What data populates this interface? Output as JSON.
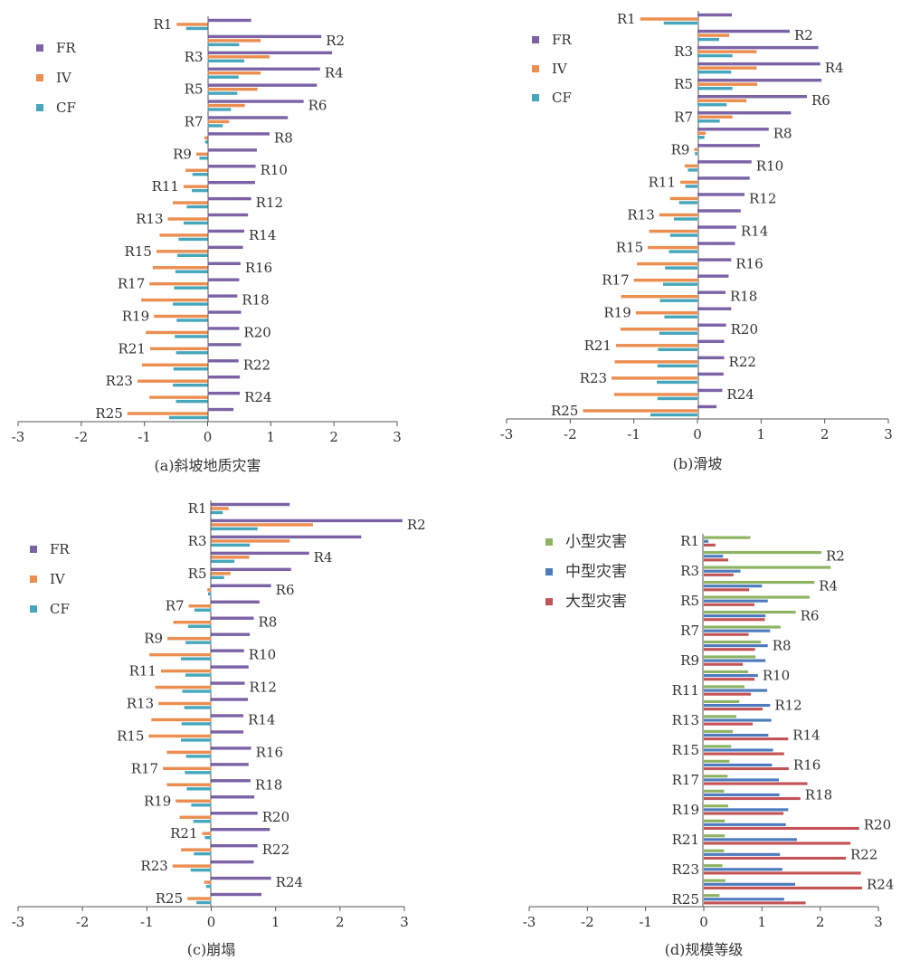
{
  "figure": {
    "colors": {
      "FR": "#7b63a6",
      "IV": "#ec8e4f",
      "CF": "#46a7bc",
      "小型灾害": "#8db363",
      "中型灾害": "#4e7bbe",
      "大型灾害": "#c35356"
    }
  },
  "chart_data": [
    {
      "type": "bar",
      "orientation": "horizontal",
      "title": "(a)斜坡地质灾害",
      "xlim": [
        -3,
        3
      ],
      "xticks": [
        "-3",
        "-2",
        "-1",
        "0",
        "1",
        "2",
        "3"
      ],
      "legend_position": "top-left",
      "categories": [
        "R1",
        "R2",
        "R3",
        "R4",
        "R5",
        "R6",
        "R7",
        "R8",
        "R9",
        "R10",
        "R11",
        "R12",
        "R13",
        "R14",
        "R15",
        "R16",
        "R17",
        "R18",
        "R19",
        "R20",
        "R21",
        "R22",
        "R23",
        "R24",
        "R25"
      ],
      "series": [
        {
          "name": "FR",
          "values": [
            0.69,
            1.8,
            1.97,
            1.78,
            1.73,
            1.52,
            1.27,
            0.98,
            0.78,
            0.76,
            0.75,
            0.69,
            0.64,
            0.58,
            0.56,
            0.52,
            0.5,
            0.47,
            0.53,
            0.5,
            0.53,
            0.49,
            0.51,
            0.51,
            0.41
          ]
        },
        {
          "name": "IV",
          "values": [
            -0.49,
            0.84,
            0.98,
            0.84,
            0.79,
            0.59,
            0.34,
            -0.05,
            -0.18,
            -0.35,
            -0.38,
            -0.55,
            -0.63,
            -0.76,
            -0.81,
            -0.87,
            -0.92,
            -1.05,
            -0.85,
            -0.98,
            -0.91,
            -1.04,
            -1.11,
            -0.92,
            -1.27
          ]
        },
        {
          "name": "CF",
          "values": [
            -0.34,
            0.5,
            0.58,
            0.49,
            0.47,
            0.37,
            0.24,
            -0.04,
            -0.13,
            -0.24,
            -0.25,
            -0.33,
            -0.38,
            -0.46,
            -0.48,
            -0.51,
            -0.53,
            -0.55,
            -0.49,
            -0.52,
            -0.5,
            -0.54,
            -0.55,
            -0.5,
            -0.61
          ]
        }
      ]
    },
    {
      "type": "bar",
      "orientation": "horizontal",
      "title": "(b)滑坡",
      "xlim": [
        -3,
        3
      ],
      "xticks": [
        "-3",
        "-2",
        "-1",
        "0",
        "1",
        "2",
        "3"
      ],
      "legend_position": "top-left",
      "categories": [
        "R1",
        "R2",
        "R3",
        "R4",
        "R5",
        "R6",
        "R7",
        "R8",
        "R9",
        "R10",
        "R11",
        "R12",
        "R13",
        "R14",
        "R15",
        "R16",
        "R17",
        "R18",
        "R19",
        "R20",
        "R21",
        "R22",
        "R23",
        "R24",
        "R25"
      ],
      "series": [
        {
          "name": "FR",
          "values": [
            0.54,
            1.45,
            1.9,
            1.93,
            1.95,
            1.72,
            1.47,
            1.12,
            0.98,
            0.85,
            0.82,
            0.74,
            0.68,
            0.61,
            0.59,
            0.53,
            0.49,
            0.44,
            0.53,
            0.45,
            0.42,
            0.42,
            0.41,
            0.39,
            0.3
          ]
        },
        {
          "name": "IV",
          "values": [
            -0.9,
            0.5,
            0.93,
            0.93,
            0.94,
            0.77,
            0.55,
            0.13,
            -0.05,
            -0.2,
            -0.27,
            -0.43,
            -0.6,
            -0.76,
            -0.78,
            -0.95,
            -1.0,
            -1.2,
            -0.97,
            -1.21,
            -1.28,
            -1.3,
            -1.35,
            -1.31,
            -1.8
          ]
        },
        {
          "name": "CF",
          "values": [
            -0.53,
            0.34,
            0.55,
            0.53,
            0.55,
            0.46,
            0.35,
            0.11,
            -0.04,
            -0.15,
            -0.19,
            -0.29,
            -0.37,
            -0.43,
            -0.45,
            -0.51,
            -0.54,
            -0.59,
            -0.52,
            -0.6,
            -0.62,
            -0.63,
            -0.64,
            -0.63,
            -0.74
          ]
        }
      ]
    },
    {
      "type": "bar",
      "orientation": "horizontal",
      "title": "(c)崩塌",
      "xlim": [
        -3,
        3
      ],
      "xticks": [
        "-3",
        "-2",
        "-1",
        "0",
        "1",
        "2",
        "3"
      ],
      "legend_position": "top-left",
      "categories": [
        "R1",
        "R2",
        "R3",
        "R4",
        "R5",
        "R6",
        "R7",
        "R8",
        "R9",
        "R10",
        "R11",
        "R12",
        "R13",
        "R14",
        "R15",
        "R16",
        "R17",
        "R18",
        "R19",
        "R20",
        "R21",
        "R22",
        "R23",
        "R24",
        "R25"
      ],
      "series": [
        {
          "name": "FR",
          "values": [
            1.22,
            2.97,
            2.33,
            1.52,
            1.24,
            0.93,
            0.75,
            0.66,
            0.6,
            0.51,
            0.58,
            0.52,
            0.57,
            0.5,
            0.5,
            0.62,
            0.58,
            0.61,
            0.67,
            0.72,
            0.91,
            0.72,
            0.66,
            0.93,
            0.78
          ]
        },
        {
          "name": "IV",
          "values": [
            0.27,
            1.58,
            1.22,
            0.59,
            0.3,
            -0.06,
            -0.35,
            -0.59,
            -0.68,
            -0.96,
            -0.78,
            -0.87,
            -0.82,
            -0.93,
            -0.97,
            -0.69,
            -0.75,
            -0.69,
            -0.55,
            -0.49,
            -0.14,
            -0.47,
            -0.6,
            -0.11,
            -0.37
          ]
        },
        {
          "name": "CF",
          "values": [
            0.18,
            0.72,
            0.6,
            0.36,
            0.2,
            -0.05,
            -0.26,
            -0.36,
            -0.4,
            -0.47,
            -0.4,
            -0.45,
            -0.42,
            -0.46,
            -0.47,
            -0.39,
            -0.41,
            -0.38,
            -0.31,
            -0.28,
            -0.1,
            -0.27,
            -0.32,
            -0.08,
            -0.23
          ]
        }
      ]
    },
    {
      "type": "bar",
      "orientation": "horizontal",
      "title": "(d)规模等级",
      "xlim": [
        -3,
        3
      ],
      "xticks": [
        "-3",
        "-2",
        "-1",
        "0",
        "1",
        "2",
        "3"
      ],
      "legend_position": "top-left",
      "categories": [
        "R1",
        "R2",
        "R3",
        "R4",
        "R5",
        "R6",
        "R7",
        "R8",
        "R9",
        "R10",
        "R11",
        "R12",
        "R13",
        "R14",
        "R15",
        "R16",
        "R17",
        "R18",
        "R19",
        "R20",
        "R21",
        "R22",
        "R23",
        "R24",
        "R25"
      ],
      "series": [
        {
          "name": "小型灾害",
          "values": [
            0.8,
            2.02,
            2.18,
            1.9,
            1.82,
            1.58,
            1.32,
            0.98,
            0.89,
            0.76,
            0.7,
            0.61,
            0.56,
            0.5,
            0.47,
            0.44,
            0.41,
            0.35,
            0.42,
            0.36,
            0.36,
            0.35,
            0.32,
            0.37,
            0.27
          ]
        },
        {
          "name": "中型灾害",
          "values": [
            0.08,
            0.33,
            0.63,
            1.0,
            1.1,
            1.06,
            1.14,
            1.1,
            1.06,
            0.93,
            1.09,
            1.14,
            1.16,
            1.11,
            1.19,
            1.17,
            1.29,
            1.3,
            1.45,
            1.41,
            1.6,
            1.31,
            1.35,
            1.57,
            1.38
          ]
        },
        {
          "name": "大型灾害",
          "values": [
            0.2,
            0.42,
            0.51,
            0.78,
            0.87,
            1.05,
            0.77,
            0.88,
            0.67,
            0.87,
            0.81,
            1.01,
            0.84,
            1.45,
            1.38,
            1.46,
            1.78,
            1.66,
            1.37,
            2.67,
            2.52,
            2.44,
            2.7,
            2.72,
            1.75
          ]
        }
      ]
    }
  ]
}
